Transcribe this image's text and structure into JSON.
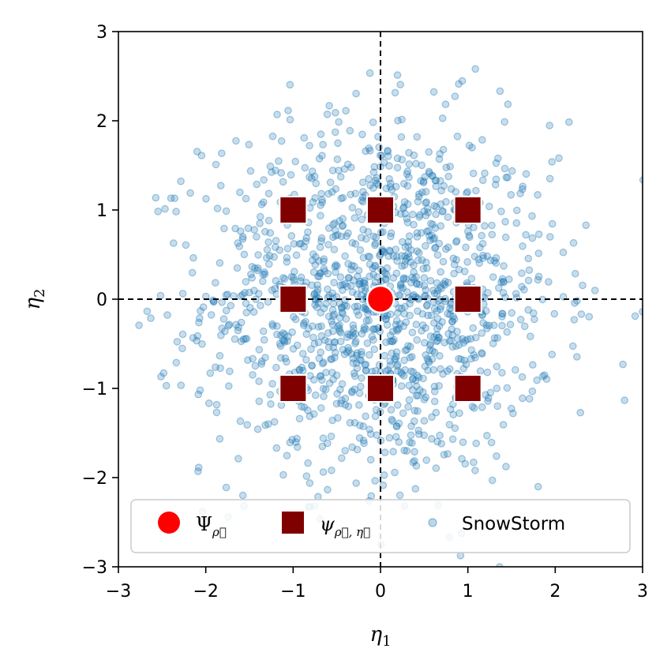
{
  "chart_data": {
    "type": "scatter",
    "xlabel": "η",
    "xlabel_sub": "1",
    "ylabel": "η",
    "ylabel_sub": "2",
    "xlim": [
      -3,
      3
    ],
    "ylim": [
      -3,
      3
    ],
    "xticks": [
      -3,
      -2,
      -1,
      0,
      1,
      2,
      3
    ],
    "yticks": [
      -3,
      -2,
      -1,
      0,
      1,
      2,
      3
    ],
    "xtick_labels": [
      "−3",
      "−2",
      "−1",
      "0",
      "1",
      "2",
      "3"
    ],
    "ytick_labels": [
      "−3",
      "−2",
      "−1",
      "0",
      "1",
      "2",
      "3"
    ],
    "reference_lines": {
      "x": 0,
      "y": 0,
      "style": "dashed"
    },
    "legend_position": "lower-center",
    "colors": {
      "center": "#ff0000",
      "grid_points": "#800000",
      "snowstorm": "#1f77b4"
    },
    "series": [
      {
        "name": "Ψ",
        "name_sub": "ρ⃗",
        "marker": "circle",
        "points": [
          [
            0,
            0
          ]
        ]
      },
      {
        "name": "ψ",
        "name_sub": "ρ⃗, η⃗",
        "marker": "square",
        "points": [
          [
            -1,
            1
          ],
          [
            0,
            1
          ],
          [
            1,
            1
          ],
          [
            -1,
            0
          ],
          [
            1,
            0
          ],
          [
            -1,
            -1
          ],
          [
            0,
            -1
          ],
          [
            1,
            -1
          ]
        ]
      },
      {
        "name": "SnowStorm",
        "marker": "circle-small",
        "alpha": 0.25,
        "distribution": "gaussian",
        "mean": [
          0,
          0
        ],
        "sigma": 1.0,
        "count": 1400
      }
    ]
  }
}
